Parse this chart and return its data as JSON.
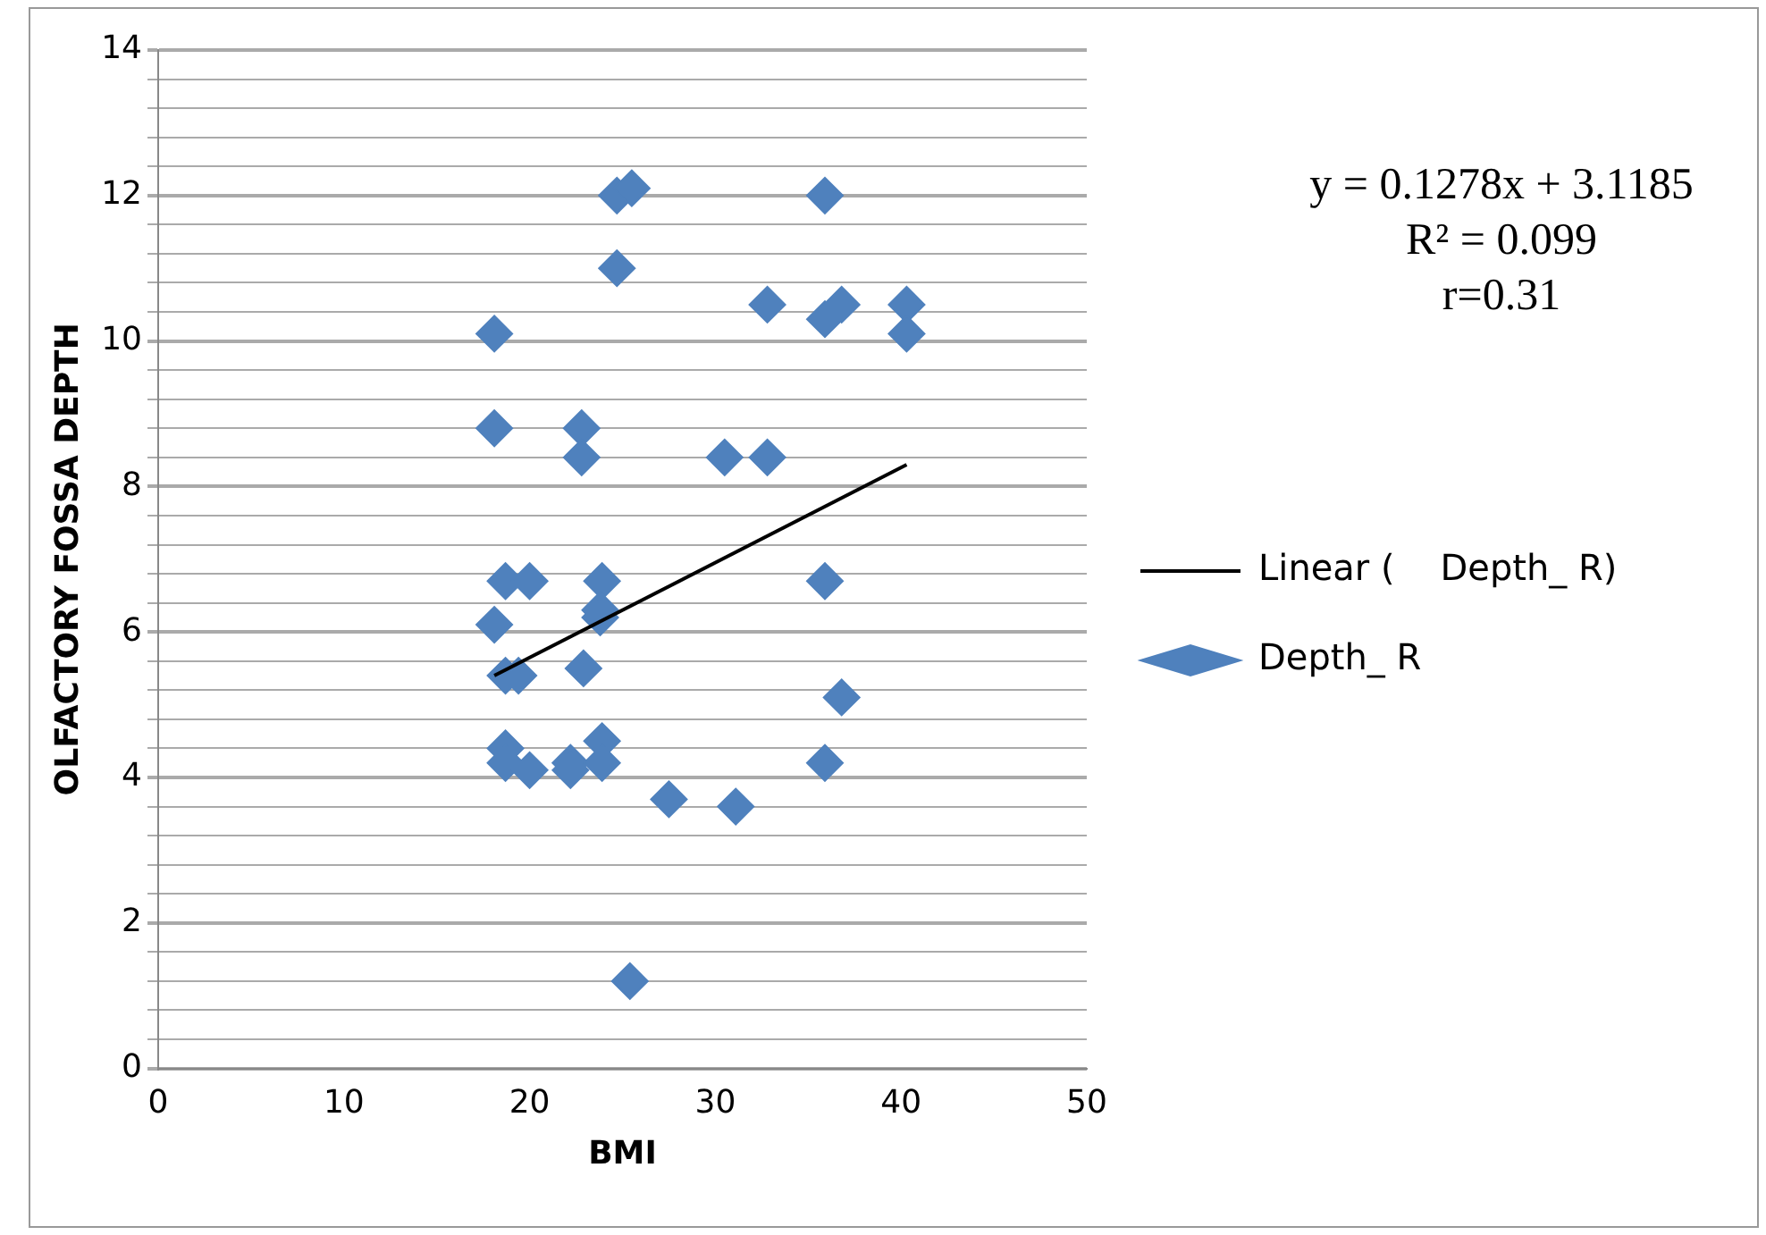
{
  "chart_data": {
    "type": "scatter",
    "xlabel": "BMI",
    "ylabel": "OLFACTORY FOSSA DEPTH",
    "xlim": [
      0,
      50
    ],
    "xticks": [
      0,
      10,
      20,
      30,
      40,
      50
    ],
    "ylim": [
      0,
      14
    ],
    "yticks": [
      0,
      {
        "value": 0.4,
        "label": null
      },
      {
        "value": 0.8,
        "label": null
      },
      {
        "value": 1.2,
        "label": null
      },
      {
        "value": 1.6,
        "label": null
      },
      2,
      {
        "value": 2.4,
        "label": null
      },
      {
        "value": 2.8,
        "label": null
      },
      {
        "value": 3.2,
        "label": null
      },
      {
        "value": 3.6,
        "label": null
      },
      4,
      {
        "value": 4.4,
        "label": null
      },
      {
        "value": 4.8,
        "label": null
      },
      {
        "value": 5.2,
        "label": null
      },
      {
        "value": 5.6,
        "label": null
      },
      6,
      {
        "value": 6.4,
        "label": null
      },
      {
        "value": 6.8,
        "label": null
      },
      {
        "value": 7.2,
        "label": null
      },
      {
        "value": 7.6,
        "label": null
      },
      8,
      {
        "value": 8.4,
        "label": null
      },
      {
        "value": 8.8,
        "label": null
      },
      {
        "value": 9.2,
        "label": null
      },
      {
        "value": 9.6,
        "label": null
      },
      10,
      {
        "value": 10.4,
        "label": null
      },
      {
        "value": 10.8,
        "label": null
      },
      {
        "value": 11.2,
        "label": null
      },
      {
        "value": 11.6,
        "label": null
      },
      12,
      {
        "value": 12.4,
        "label": null
      },
      {
        "value": 12.8,
        "label": null
      },
      {
        "value": 13.2,
        "label": null
      },
      {
        "value": 13.6,
        "label": null
      },
      14
    ],
    "grid": "y",
    "legend": "right",
    "marker": "diamond",
    "annotations": [
      "y = 0.1278x + 3.1185",
      "R² = 0.099",
      "r=0.31"
    ],
    "series": [
      {
        "name": "Depth_ R",
        "color": "#4f81bd",
        "x": [
          18.1,
          18.1,
          18.1,
          18.7,
          19.4,
          18.7,
          20.0,
          18.7,
          18.7,
          20.0,
          22.8,
          22.8,
          22.9,
          22.2,
          22.2,
          23.9,
          23.8,
          23.8,
          23.9,
          23.9,
          24.7,
          24.7,
          25.5,
          25.4,
          27.5,
          31.1,
          30.5,
          32.8,
          32.8,
          35.9,
          35.9,
          36.8,
          35.9,
          35.9,
          36.8,
          40.3,
          40.3
        ],
        "values": [
          10.1,
          8.8,
          6.1,
          5.4,
          5.4,
          6.7,
          6.7,
          4.4,
          4.2,
          4.1,
          8.8,
          8.4,
          5.5,
          4.2,
          4.1,
          6.7,
          6.3,
          6.2,
          4.5,
          4.2,
          11.0,
          12.0,
          12.1,
          1.2,
          3.7,
          3.6,
          8.4,
          8.4,
          10.5,
          12.0,
          10.3,
          10.5,
          6.7,
          4.2,
          5.1,
          10.5,
          10.1
        ]
      },
      {
        "name": "Linear (    Depth_ R)",
        "type": "line",
        "color": "#000000",
        "marker": "none",
        "x": [
          18.1,
          40.3
        ],
        "values": [
          5.4,
          8.3
        ]
      }
    ]
  }
}
